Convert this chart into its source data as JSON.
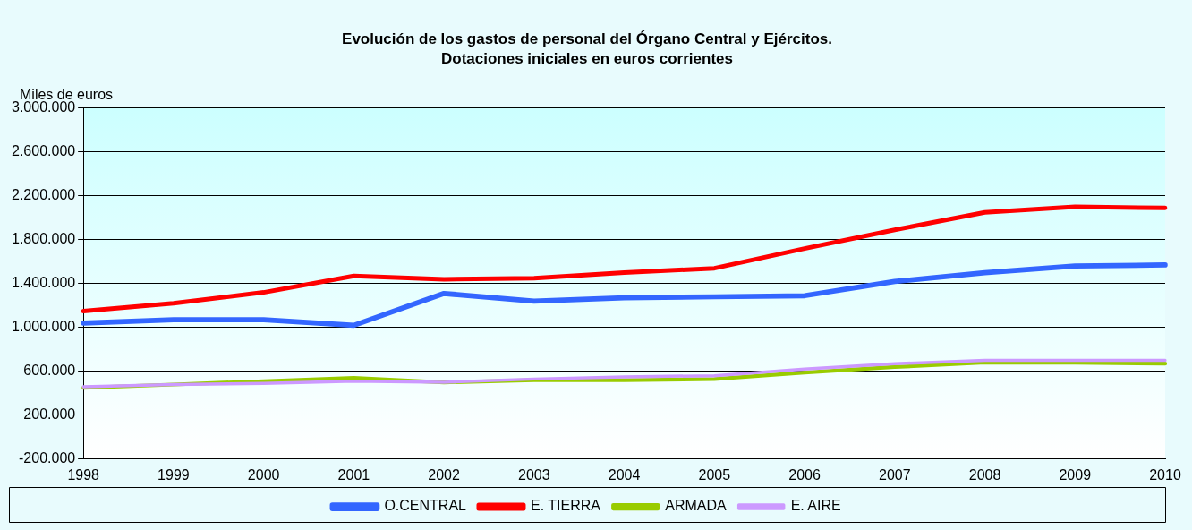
{
  "chart_data": {
    "type": "line",
    "title": "Evolución de los gastos de personal del Órgano Central y Ejércitos.",
    "subtitle": "Dotaciones iniciales en euros corrientes",
    "ylabel": "Miles de euros",
    "categories": [
      "1998",
      "1999",
      "2000",
      "2001",
      "2002",
      "2003",
      "2004",
      "2005",
      "2006",
      "2007",
      "2008",
      "2009",
      "2010"
    ],
    "series": [
      {
        "name": "O.CENTRAL",
        "color": "#3366ff",
        "values": [
          1040000,
          1070000,
          1070000,
          1020000,
          1310000,
          1240000,
          1270000,
          1280000,
          1290000,
          1420000,
          1500000,
          1560000,
          1570000
        ]
      },
      {
        "name": "E. TIERRA",
        "color": "#ff0000",
        "values": [
          1150000,
          1220000,
          1320000,
          1470000,
          1440000,
          1450000,
          1500000,
          1540000,
          1720000,
          1890000,
          2050000,
          2100000,
          2090000
        ]
      },
      {
        "name": "ARMADA",
        "color": "#99cc00",
        "values": [
          450000,
          480000,
          510000,
          540000,
          500000,
          520000,
          520000,
          530000,
          590000,
          640000,
          680000,
          680000,
          670000
        ]
      },
      {
        "name": "E. AIRE",
        "color": "#cc99ff",
        "values": [
          460000,
          480000,
          490000,
          510000,
          500000,
          530000,
          550000,
          560000,
          620000,
          670000,
          700000,
          700000,
          700000
        ]
      }
    ],
    "ylim": [
      -200000,
      3000000
    ],
    "yticks": [
      {
        "value": -200000,
        "label": "-200.000"
      },
      {
        "value": 200000,
        "label": "200.000"
      },
      {
        "value": 600000,
        "label": "600.000"
      },
      {
        "value": 1000000,
        "label": "1.000.000"
      },
      {
        "value": 1400000,
        "label": "1.400.000"
      },
      {
        "value": 1800000,
        "label": "1.800.000"
      },
      {
        "value": 2200000,
        "label": "2.200.000"
      },
      {
        "value": 2600000,
        "label": "2.600.000"
      },
      {
        "value": 3000000,
        "label": "3.000.000"
      }
    ],
    "grid": "y",
    "legend": "bottom",
    "marker": "none",
    "line_style": "solid"
  }
}
